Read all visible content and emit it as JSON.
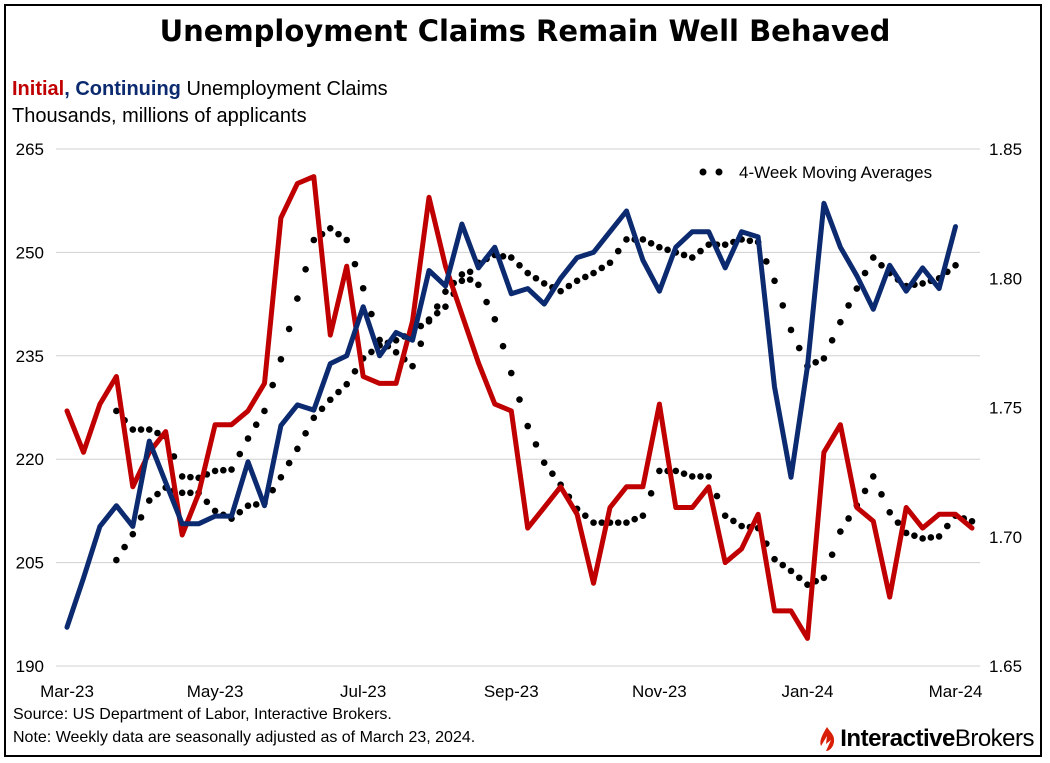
{
  "title": "Unemployment Claims Remain Well Behaved",
  "subtitle": {
    "initial": "Initial",
    "comma": ",",
    "continuing": "Continuing",
    "rest": "Unemployment Claims"
  },
  "units": "Thousands, millions of applicants",
  "source": "Source: US Department of Labor, Interactive Brokers.",
  "note": "Note: Weekly data are seasonally adjusted as of March 23, 2024.",
  "brand": {
    "part1": "Interactive",
    "part2": "Brokers"
  },
  "colors": {
    "initial": "#c00000",
    "continuing": "#0b2a6f",
    "ma": "#000000",
    "grid": "#d0d0d0"
  },
  "chart_data": {
    "type": "line",
    "x_labels": [
      "Mar-23",
      "May-23",
      "Jul-23",
      "Sep-23",
      "Nov-23",
      "Jan-24",
      "Mar-24"
    ],
    "x_label_index": [
      0,
      9,
      18,
      27,
      36,
      45,
      54
    ],
    "left_axis": {
      "ylim": [
        190,
        265
      ],
      "ticks": [
        "190",
        "205",
        "220",
        "235",
        "250",
        "265"
      ]
    },
    "right_axis": {
      "ylim": [
        1.65,
        1.85
      ],
      "ticks": [
        "1.65",
        "1.70",
        "1.75",
        "1.80",
        "1.85"
      ]
    },
    "legend": {
      "label": "4-Week Moving Averages",
      "position": "top-right"
    },
    "series": [
      {
        "name": "Initial",
        "axis": "left",
        "values": [
          227,
          221,
          228,
          232,
          216,
          221,
          224,
          209,
          215,
          225,
          225,
          227,
          231,
          255,
          260,
          261,
          238,
          248,
          232,
          231,
          231,
          240,
          258,
          248,
          241,
          234,
          228,
          227,
          210,
          213,
          216,
          212,
          202,
          213,
          216,
          216,
          228,
          213,
          213,
          216,
          205,
          207,
          212,
          198,
          198,
          194,
          221,
          225,
          213,
          211,
          200,
          213,
          210,
          212,
          212,
          210
        ]
      },
      {
        "name": "Continuing",
        "axis": "right",
        "values": [
          1.665,
          1.684,
          1.704,
          1.712,
          1.704,
          1.737,
          1.721,
          1.705,
          1.705,
          1.708,
          1.708,
          1.729,
          1.712,
          1.743,
          1.751,
          1.749,
          1.767,
          1.77,
          1.789,
          1.77,
          1.779,
          1.776,
          1.803,
          1.797,
          1.821,
          1.804,
          1.812,
          1.794,
          1.796,
          1.79,
          1.8,
          1.808,
          1.81,
          1.818,
          1.826,
          1.807,
          1.795,
          1.812,
          1.818,
          1.818,
          1.804,
          1.818,
          1.816,
          1.758,
          1.723,
          1.766,
          1.829,
          1.812,
          1.801,
          1.788,
          1.805,
          1.795,
          1.804,
          1.796,
          1.82
        ]
      },
      {
        "name": "Initial 4-Week Moving Average",
        "axis": "left",
        "values": [
          null,
          null,
          null,
          227,
          224.3,
          224.3,
          223.3,
          217.5,
          217.3,
          218.3,
          218.5,
          223,
          227,
          234.5,
          243.3,
          251.8,
          253.5,
          251.8,
          244.8,
          237.3,
          235.5,
          233.5,
          240,
          244.3,
          246.8,
          245.3,
          240.3,
          232.5,
          224.8,
          219.5,
          216.3,
          212.8,
          210.8,
          210.8,
          210.8,
          211.8,
          218.3,
          218.3,
          217.5,
          217.5,
          211.8,
          210.3,
          210,
          205.5,
          203.8,
          201.8,
          202.8,
          209.5,
          213.3,
          217.5,
          212.3,
          209.3,
          208.5,
          208.8,
          211.8,
          211
        ]
      },
      {
        "name": "Continuing 4-Week Moving Average",
        "axis": "right",
        "values": [
          null,
          null,
          null,
          1.691,
          1.701,
          1.714,
          1.719,
          1.717,
          1.717,
          1.71,
          1.707,
          1.712,
          1.713,
          1.723,
          1.734,
          1.746,
          1.753,
          1.759,
          1.769,
          1.774,
          1.776,
          1.779,
          1.784,
          1.789,
          1.799,
          1.806,
          1.809,
          1.808,
          1.802,
          1.798,
          1.795,
          1.799,
          1.802,
          1.806,
          1.815,
          1.815,
          1.812,
          1.81,
          1.808,
          1.813,
          1.813,
          1.815,
          1.814,
          1.799,
          1.78,
          1.766,
          1.769,
          1.783,
          1.796,
          1.808,
          1.802,
          1.797,
          1.798,
          1.8,
          1.805
        ]
      }
    ]
  }
}
